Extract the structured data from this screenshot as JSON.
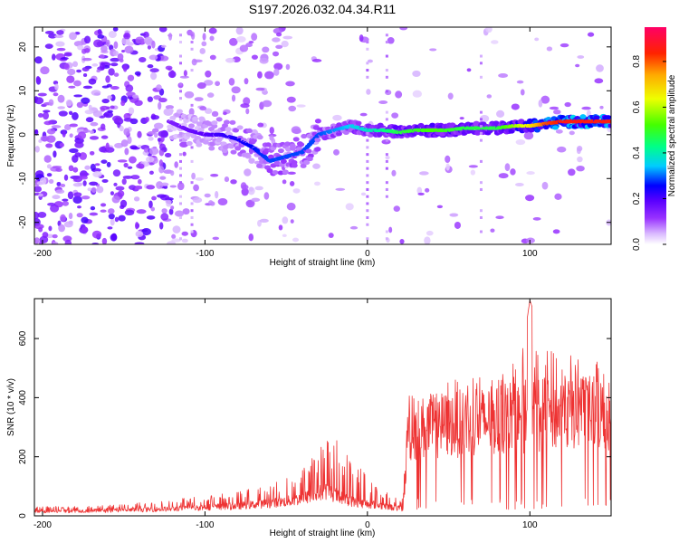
{
  "figure_title": "S197.2026.032.04.34.R11",
  "chart_data": [
    {
      "type": "heatmap",
      "title": "S197.2026.032.04.34.R11",
      "xlabel": "Height of straight line (km)",
      "ylabel": "Frequency (Hz)",
      "xlim": [
        -205,
        150
      ],
      "ylim": [
        -25,
        24.5
      ],
      "xticks": [
        -200,
        -100,
        0,
        100
      ],
      "xtick_labels": [
        "-200",
        "-100",
        "0",
        "100"
      ],
      "yticks": [
        -20,
        -10,
        0,
        10,
        20
      ],
      "ytick_labels": [
        "-20",
        "-10",
        "0",
        "10",
        "20"
      ],
      "colorbar": {
        "label": "Normalized spectral amplitude",
        "range": [
          0,
          0.95
        ],
        "ticks": [
          0.0,
          0.2,
          0.4,
          0.6,
          0.8
        ],
        "tick_labels": [
          "0.0",
          "0.2",
          "0.4",
          "0.6",
          "0.8"
        ],
        "colormap": [
          "#ffffff",
          "#d9b8ff",
          "#9933ff",
          "#5a00ff",
          "#0000ff",
          "#00ccff",
          "#00ff88",
          "#44ff00",
          "#eeff00",
          "#ffaa00",
          "#ff2200",
          "#ff0066"
        ]
      },
      "ridge": {
        "description_points_km_hz": [
          [
            -122,
            3
          ],
          [
            -110,
            1
          ],
          [
            -100,
            0
          ],
          [
            -90,
            0
          ],
          [
            -80,
            -1
          ],
          [
            -70,
            -3
          ],
          [
            -60,
            -6
          ],
          [
            -50,
            -5
          ],
          [
            -40,
            -4
          ],
          [
            -30,
            0
          ],
          [
            -20,
            1
          ],
          [
            -10,
            2
          ],
          [
            0,
            1
          ],
          [
            10,
            1
          ],
          [
            20,
            0.5
          ],
          [
            30,
            1
          ],
          [
            40,
            1
          ],
          [
            50,
            1
          ],
          [
            60,
            1.5
          ],
          [
            70,
            1.5
          ],
          [
            80,
            1.5
          ],
          [
            90,
            2
          ],
          [
            100,
            2
          ],
          [
            110,
            2.5
          ],
          [
            120,
            3
          ],
          [
            130,
            3
          ],
          [
            150,
            3
          ]
        ],
        "amplitude_points": [
          [
            -122,
            0.15
          ],
          [
            -100,
            0.2
          ],
          [
            -80,
            0.25
          ],
          [
            -60,
            0.3
          ],
          [
            -30,
            0.3
          ],
          [
            -15,
            0.35
          ],
          [
            0,
            0.4
          ],
          [
            20,
            0.5
          ],
          [
            40,
            0.55
          ],
          [
            60,
            0.5
          ],
          [
            80,
            0.5
          ],
          [
            100,
            0.7
          ],
          [
            110,
            0.85
          ],
          [
            120,
            0.9
          ],
          [
            150,
            0.9
          ]
        ]
      }
    },
    {
      "type": "line",
      "xlabel": "Height of straight line (km)",
      "ylabel": "SNR (10 * v/v)",
      "xlim": [
        -205,
        150
      ],
      "ylim": [
        0,
        735
      ],
      "xticks": [
        -200,
        -100,
        0,
        100
      ],
      "xtick_labels": [
        "-200",
        "-100",
        "0",
        "100"
      ],
      "yticks": [
        0,
        200,
        400,
        600
      ],
      "ytick_labels": [
        "0",
        "200",
        "400",
        "600"
      ],
      "color": "#ee3333",
      "envelope_x": [
        -205,
        -150,
        -120,
        -100,
        -80,
        -60,
        -45,
        -35,
        -25,
        -15,
        -5,
        5,
        15,
        22,
        25,
        40,
        60,
        80,
        95,
        100,
        110,
        130,
        150
      ],
      "envelope_mean": [
        15,
        20,
        25,
        30,
        35,
        45,
        55,
        70,
        90,
        60,
        45,
        40,
        30,
        25,
        300,
        320,
        330,
        340,
        350,
        360,
        360,
        370,
        360
      ],
      "envelope_peak": [
        30,
        40,
        55,
        70,
        80,
        110,
        140,
        200,
        280,
        250,
        180,
        100,
        70,
        60,
        420,
        440,
        470,
        500,
        540,
        730,
        560,
        540,
        520
      ]
    }
  ]
}
